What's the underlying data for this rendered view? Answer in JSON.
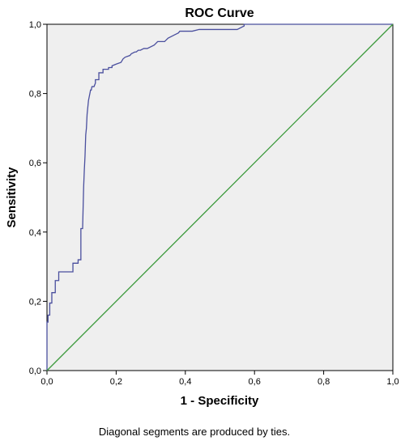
{
  "chart_data": {
    "type": "line",
    "title": "ROC Curve",
    "xlabel": "1 - Specificity",
    "ylabel": "Sensitivity",
    "footnote": "Diagonal segments are produced by ties.",
    "xlim": [
      0,
      1
    ],
    "ylim": [
      0,
      1
    ],
    "x_ticks": [
      "0,0",
      "0,2",
      "0,4",
      "0,6",
      "0,8",
      "1,0"
    ],
    "y_ticks": [
      "0,0",
      "0,2",
      "0,4",
      "0,6",
      "0,8",
      "1,0"
    ],
    "grid": false,
    "colors": {
      "plot_background": "#efefef",
      "roc": "#4a4f9e",
      "reference": "#3c9a3c"
    },
    "series": [
      {
        "x": [
          0.0,
          0.0,
          0.003,
          0.003,
          0.008,
          0.008,
          0.014,
          0.014,
          0.024,
          0.024,
          0.034,
          0.034,
          0.075,
          0.075,
          0.09,
          0.09,
          0.098,
          0.098,
          0.103,
          0.106,
          0.108,
          0.11,
          0.112,
          0.114,
          0.116,
          0.118,
          0.12,
          0.124,
          0.126,
          0.128,
          0.13,
          0.136,
          0.14,
          0.14,
          0.15,
          0.15,
          0.162,
          0.162,
          0.178,
          0.178,
          0.188,
          0.188,
          0.2,
          0.214,
          0.22,
          0.226,
          0.24,
          0.244,
          0.254,
          0.258,
          0.264,
          0.27,
          0.28,
          0.29,
          0.31,
          0.32,
          0.34,
          0.35,
          0.37,
          0.38,
          0.384,
          0.42,
          0.44,
          0.5,
          0.53,
          0.55,
          0.57,
          0.57,
          0.6,
          1.0
        ],
        "y": [
          0.0,
          0.14,
          0.14,
          0.16,
          0.16,
          0.195,
          0.195,
          0.225,
          0.225,
          0.26,
          0.26,
          0.285,
          0.285,
          0.31,
          0.31,
          0.32,
          0.32,
          0.41,
          0.41,
          0.53,
          0.58,
          0.62,
          0.68,
          0.7,
          0.74,
          0.76,
          0.78,
          0.8,
          0.81,
          0.81,
          0.82,
          0.82,
          0.83,
          0.84,
          0.84,
          0.86,
          0.86,
          0.87,
          0.87,
          0.875,
          0.875,
          0.88,
          0.885,
          0.89,
          0.9,
          0.905,
          0.91,
          0.915,
          0.92,
          0.92,
          0.925,
          0.925,
          0.93,
          0.93,
          0.94,
          0.95,
          0.95,
          0.96,
          0.97,
          0.975,
          0.98,
          0.98,
          0.985,
          0.985,
          0.985,
          0.985,
          0.995,
          1.0,
          1.0,
          1.0
        ]
      },
      {
        "x": [
          0,
          1
        ],
        "y": [
          0,
          1
        ]
      }
    ]
  }
}
